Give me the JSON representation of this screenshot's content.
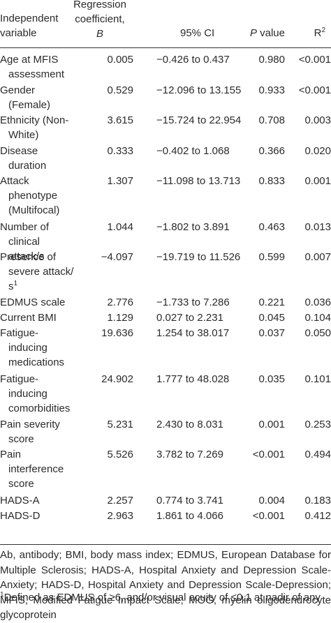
{
  "header": {
    "col_var_line1": "Independent",
    "col_var_line2": "variable",
    "col_b_line1": "Regression",
    "col_b_line2": "coefficient,",
    "col_b_line3": "B",
    "col_ci": "95% CI",
    "col_p_italic": "P",
    "col_p_rest": " value",
    "col_r": "R",
    "col_r_sup": "2"
  },
  "rows": [
    {
      "var": [
        "Age at MFIS",
        "assessment"
      ],
      "b": "0.005",
      "ci": "−0.426 to 0.437",
      "p": "0.980",
      "r2": "<0.001"
    },
    {
      "var": [
        "Gender",
        "(Female)"
      ],
      "b": "0.529",
      "ci": "−12.096 to 13.155",
      "p": "0.933",
      "r2": "<0.001"
    },
    {
      "var": [
        "Ethnicity (Non-",
        "White)"
      ],
      "b": "3.615",
      "ci": "−15.724 to 22.954",
      "p": "0.708",
      "r2": "0.003"
    },
    {
      "var": [
        "Disease",
        "duration"
      ],
      "b": "0.333",
      "ci": "−0.402 to 1.068",
      "p": "0.366",
      "r2": "0.020"
    },
    {
      "var": [
        "Attack",
        "phenotype",
        "(Multifocal)"
      ],
      "b": "1.307",
      "ci": "−11.098 to 13.713",
      "p": "0.833",
      "r2": "0.001"
    },
    {
      "var": [
        "Number of",
        "clinical attack/s"
      ],
      "b": "1.044",
      "ci": "−1.802 to 3.891",
      "p": "0.463",
      "r2": "0.013"
    },
    {
      "var": [
        "Presence of",
        "severe attack/",
        "s"
      ],
      "var_sup": "1",
      "b": "−4.097",
      "ci": "−19.719 to 11.526",
      "p": "0.599",
      "r2": "0.007"
    },
    {
      "var": [
        "EDMUS scale"
      ],
      "b": "2.776",
      "ci": "−1.733 to 7.286",
      "p": "0.221",
      "r2": "0.036"
    },
    {
      "var": [
        "Current BMI"
      ],
      "b": "1.129",
      "ci": "0.027 to 2.231",
      "p": "0.045",
      "r2": "0.104"
    },
    {
      "var": [
        "Fatigue-",
        "inducing",
        "medications"
      ],
      "b": "19.636",
      "ci": "1.254 to 38.017",
      "p": "0.037",
      "r2": "0.050"
    },
    {
      "var": [
        "Fatigue-",
        "inducing",
        "comorbidities"
      ],
      "b": "24.902",
      "ci": "1.777 to 48.028",
      "p": "0.035",
      "r2": "0.101"
    },
    {
      "var": [
        "Pain severity",
        "score"
      ],
      "b": "5.231",
      "ci": "2.430 to 8.031",
      "p": "0.001",
      "r2": "0.253"
    },
    {
      "var": [
        "Pain",
        "interference",
        "score"
      ],
      "b": "5.526",
      "ci": "3.782 to 7.269",
      "p": "<0.001",
      "r2": "0.494"
    },
    {
      "var": [
        "HADS-A"
      ],
      "b": "2.257",
      "ci": "0.774 to 3.741",
      "p": "0.004",
      "r2": "0.183"
    },
    {
      "var": [
        "HADS-D"
      ],
      "b": "2.963",
      "ci": "1.861 to 4.066",
      "p": "<0.001",
      "r2": "0.412"
    }
  ],
  "footnote": {
    "abbreviations": "Ab, antibody; BMI, body mass index; EDMUS, European Database for Multiple Sclerosis; HADS-A, Hospital Anxiety and Depression Scale-Anxiety; HADS-D, Hospital Anxiety and Depression Scale-Depression; MFIS, Modified Fatigue Impact Scale; MOG, myelin oligodendrocyte glycoprotein",
    "note_sup": "1",
    "note_text": "Defined as EDMUS of ≥6, and/or visual acuity of ≤0.1 at nadir of any"
  }
}
